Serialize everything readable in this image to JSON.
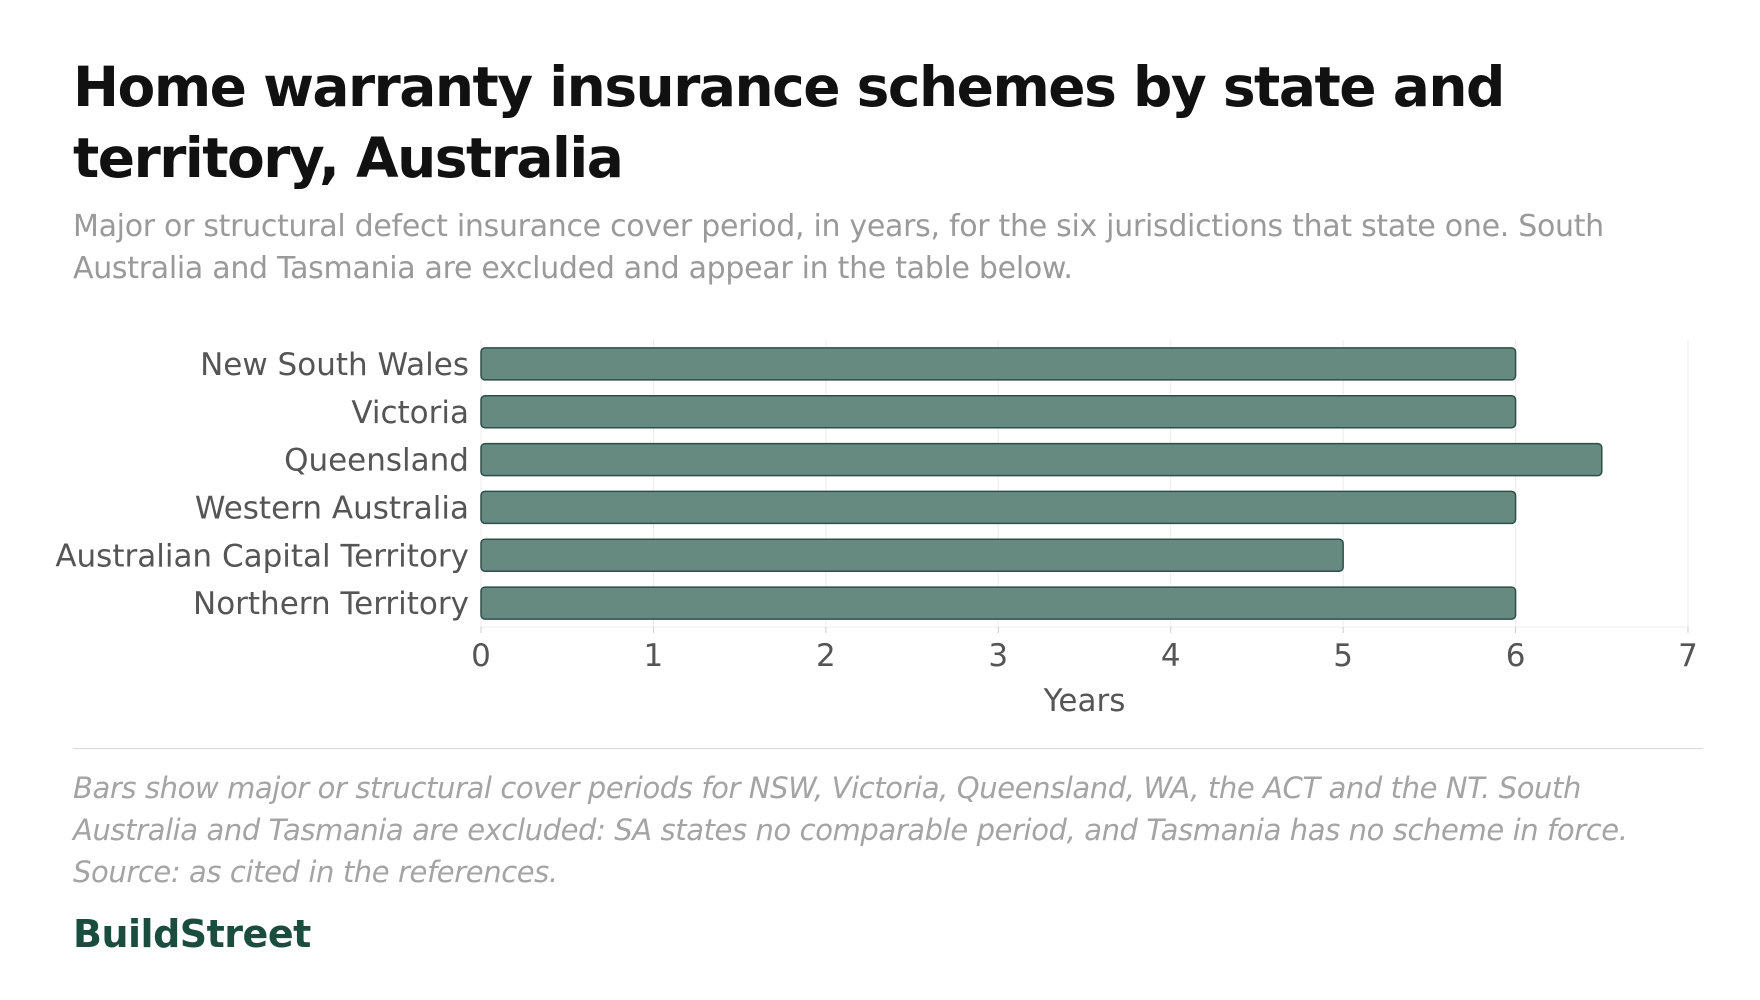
{
  "header": {
    "title": "Home warranty insurance schemes by state and territory, Australia",
    "subtitle": "Major or structural defect insurance cover period, in years, for the six jurisdictions that state one. South Australia and Tasmania are excluded and appear in the table below."
  },
  "chart_data": {
    "type": "bar",
    "orientation": "horizontal",
    "categories": [
      "New South Wales",
      "Victoria",
      "Queensland",
      "Western Australia",
      "Australian Capital Territory",
      "Northern Territory"
    ],
    "values": [
      6,
      6,
      6.5,
      6,
      5,
      6
    ],
    "xlabel": "Years",
    "ylabel": "",
    "xlim": [
      0,
      7
    ],
    "xticks": [
      "0",
      "1",
      "2",
      "3",
      "4",
      "5",
      "6",
      "7"
    ],
    "grid": "vertical",
    "bar_color": "#668a80",
    "bar_stroke": "#2f4f46",
    "grid_color": "#ececec",
    "tick_label_color": "#555555"
  },
  "footer": {
    "note": "Bars show major or structural cover periods for NSW, Victoria, Queensland, WA, the ACT and the NT. South Australia and Tasmania are excluded: SA states no comparable period, and Tasmania has no scheme in force. Source: as cited in the references.",
    "brand": "BuildStreet",
    "brand_color": "#1b4d3e"
  }
}
